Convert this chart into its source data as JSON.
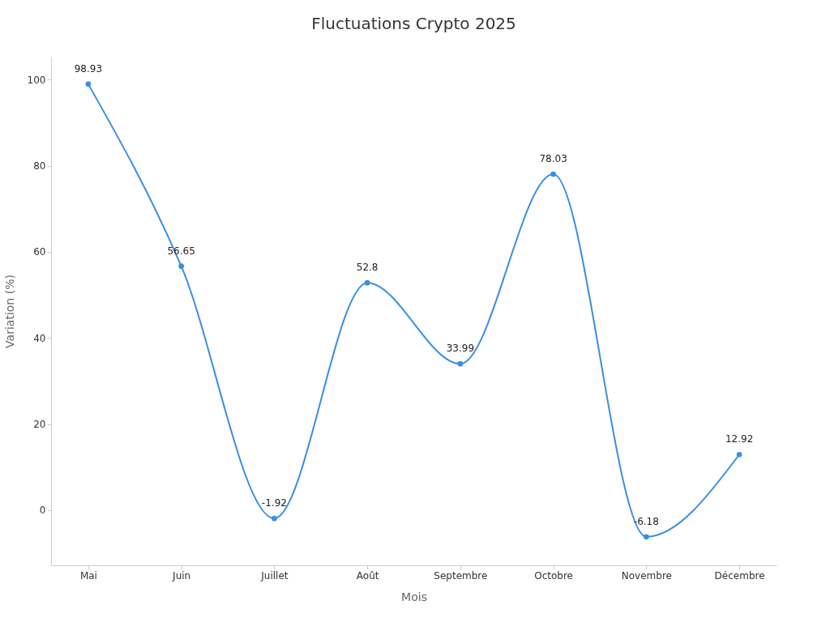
{
  "chart_data": {
    "type": "line",
    "title": "Fluctuations Crypto 2025",
    "xlabel": "Mois",
    "ylabel": "Variation (%)",
    "categories": [
      "Mai",
      "Juin",
      "Juillet",
      "Août",
      "Septembre",
      "Octobre",
      "Novembre",
      "Décembre"
    ],
    "series": [
      {
        "color": "#3a8fe0",
        "values": [
          98.93,
          56.65,
          -1.92,
          52.8,
          33.99,
          78.03,
          -6.18,
          12.92
        ]
      }
    ],
    "ylim": [
      -12.8,
      105.3
    ],
    "yticks": [
      0,
      20,
      40,
      60,
      80,
      100
    ],
    "data_labels": true,
    "marker": "circle",
    "grid": false,
    "legend": false
  }
}
